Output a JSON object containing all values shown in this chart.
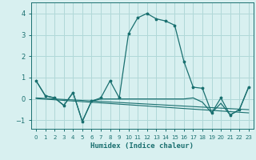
{
  "title": "",
  "xlabel": "Humidex (Indice chaleur)",
  "ylabel": "",
  "background_color": "#d8f0f0",
  "grid_color": "#b0d8d8",
  "line_color": "#1a7070",
  "xlim": [
    -0.5,
    23.5
  ],
  "ylim": [
    -1.4,
    4.5
  ],
  "yticks": [
    -1,
    0,
    1,
    2,
    3,
    4
  ],
  "xticks": [
    0,
    1,
    2,
    3,
    4,
    5,
    6,
    7,
    8,
    9,
    10,
    11,
    12,
    13,
    14,
    15,
    16,
    17,
    18,
    19,
    20,
    21,
    22,
    23
  ],
  "series1": [
    [
      0,
      0.85
    ],
    [
      1,
      0.15
    ],
    [
      2,
      0.05
    ],
    [
      3,
      -0.3
    ],
    [
      4,
      0.3
    ],
    [
      5,
      -1.05
    ],
    [
      6,
      -0.1
    ],
    [
      7,
      0.05
    ],
    [
      8,
      0.85
    ],
    [
      9,
      0.05
    ],
    [
      10,
      3.05
    ],
    [
      11,
      3.8
    ],
    [
      12,
      4.0
    ],
    [
      13,
      3.75
    ],
    [
      14,
      3.65
    ],
    [
      15,
      3.45
    ],
    [
      16,
      1.75
    ],
    [
      17,
      0.55
    ],
    [
      18,
      0.5
    ],
    [
      19,
      -0.65
    ],
    [
      20,
      0.05
    ],
    [
      21,
      -0.75
    ],
    [
      22,
      -0.5
    ],
    [
      23,
      0.55
    ]
  ],
  "series2": [
    [
      0,
      0.85
    ],
    [
      1,
      0.15
    ],
    [
      2,
      0.05
    ],
    [
      3,
      -0.3
    ],
    [
      4,
      0.3
    ],
    [
      5,
      -1.05
    ],
    [
      6,
      -0.1
    ],
    [
      7,
      0.0
    ],
    [
      8,
      0.0
    ],
    [
      9,
      0.0
    ],
    [
      10,
      0.0
    ],
    [
      11,
      0.0
    ],
    [
      12,
      0.0
    ],
    [
      13,
      0.0
    ],
    [
      14,
      0.0
    ],
    [
      15,
      0.0
    ],
    [
      16,
      0.0
    ],
    [
      17,
      0.05
    ],
    [
      18,
      -0.15
    ],
    [
      19,
      -0.65
    ],
    [
      20,
      -0.2
    ],
    [
      21,
      -0.75
    ],
    [
      22,
      -0.5
    ],
    [
      23,
      0.55
    ]
  ],
  "series3_x": [
    0,
    23
  ],
  "series3_y": [
    0.05,
    -0.5
  ],
  "series4_x": [
    0,
    23
  ],
  "series4_y": [
    0.02,
    -0.65
  ]
}
